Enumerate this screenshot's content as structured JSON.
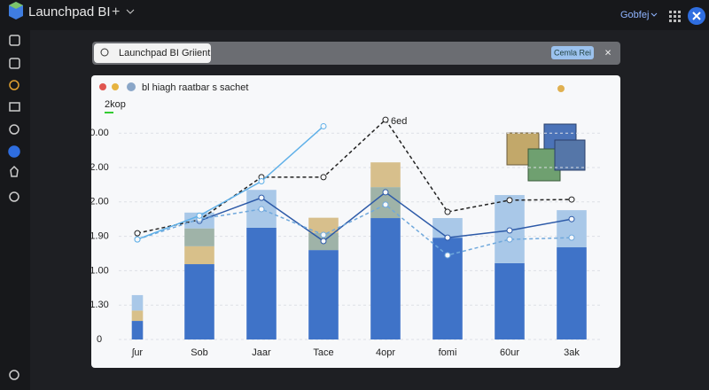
{
  "app": {
    "name": "Launchpad BI",
    "user": "Gobfej",
    "search": "Launchpad BI Griient",
    "search_tag": "Cemla Rei"
  },
  "chart_data": {
    "type": "bar",
    "title": "bl hiagh raatbar s sachet",
    "ylabel": "2kop",
    "annotation": "6ed",
    "categories": [
      "ʃur",
      "Sob",
      "Jaar",
      "Tace",
      "4opr",
      "fomi",
      "60ur",
      "3ak"
    ],
    "ylim": [
      0,
      6.6
    ],
    "yticks": [
      {
        "value": 0,
        "label": "0"
      },
      {
        "value": 1,
        "label": "1.30"
      },
      {
        "value": 2,
        "label": "1.00"
      },
      {
        "value": 3,
        "label": "1.90"
      },
      {
        "value": 4,
        "label": "2.00"
      },
      {
        "value": 5,
        "label": "2.00"
      },
      {
        "value": 6,
        "label": "0.00"
      }
    ],
    "grid": true,
    "stacked": true,
    "series": [
      {
        "color": "#3f73c8",
        "values": [
          0.54,
          2.19,
          3.25,
          2.6,
          3.53,
          2.96,
          2.22,
          2.68
        ]
      },
      {
        "color": "#d8c08a",
        "values": [
          0.3,
          0.52,
          0,
          0,
          0,
          0,
          0,
          0
        ]
      },
      {
        "color": "#9fb3a8",
        "values": [
          0,
          0.52,
          0,
          0.5,
          0.9,
          0,
          0,
          0
        ]
      },
      {
        "color": "#d7bf8c",
        "values": [
          0,
          0,
          0,
          0.44,
          0.72,
          0,
          0,
          0
        ]
      },
      {
        "color": "#a9c8e8",
        "values": [
          0.45,
          0.46,
          1.1,
          0,
          0,
          0.57,
          1.98,
          1.08
        ]
      }
    ],
    "lines": [
      {
        "color": "#222222",
        "dashed": true,
        "values": [
          3.09,
          3.48,
          4.72,
          4.72,
          6.39,
          3.71,
          4.05,
          4.07
        ]
      },
      {
        "color": "#2d5aa8",
        "dashed": false,
        "values": [
          null,
          3.45,
          4.12,
          2.86,
          4.28,
          2.96,
          3.17,
          3.5
        ]
      },
      {
        "color": "#6fa8dc",
        "dashed": true,
        "values": [
          2.91,
          3.5,
          3.79,
          3.04,
          3.92,
          2.45,
          2.91,
          2.96
        ]
      },
      {
        "color": "#5fb0e8",
        "dashed": false,
        "values": [
          2.91,
          3.6,
          4.6,
          6.2,
          null,
          null,
          null,
          null
        ]
      }
    ]
  }
}
